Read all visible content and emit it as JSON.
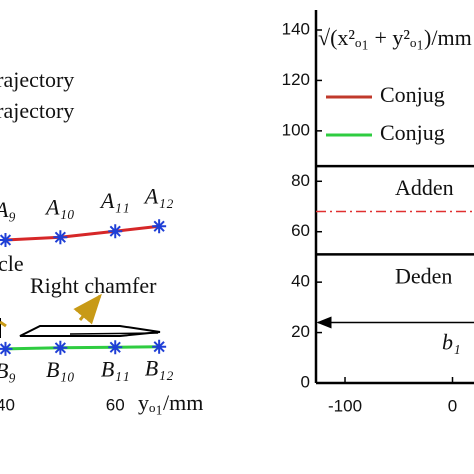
{
  "chart_data": [
    {
      "type": "line",
      "legend_texts": [
        "trajectory",
        "trajectory"
      ],
      "annotations": [
        "cle",
        "Right chamfer"
      ],
      "x_label": "yₒ₁/mm",
      "x": [
        40,
        50,
        60,
        68
      ],
      "xlim": [
        39,
        80
      ],
      "xticks": [
        40,
        60
      ],
      "ylim": [
        0,
        70
      ],
      "series": [
        {
          "color": "#d62728",
          "marker_color": "#1f3fd6",
          "values": [
            26,
            26.5,
            27.6,
            28.5
          ],
          "point_labels": [
            "A₉",
            "A₁₀",
            "A₁₁",
            "A₁₂"
          ],
          "label_side": "above"
        },
        {
          "color": "#2ecc40",
          "marker_color": "#1f3fd6",
          "values": [
            6.2,
            6.4,
            6.5,
            6.6
          ],
          "point_labels": [
            "B₉",
            "B₁₀",
            "B₁₁",
            "B₁₂"
          ],
          "label_side": "below"
        }
      ]
    },
    {
      "type": "levels",
      "y_label": "√(x²ₒ₁ + y²ₒ₁)/mm",
      "xlim": [
        -127,
        20
      ],
      "xticks": [
        -100,
        0
      ],
      "ylim": [
        0,
        140
      ],
      "yticks": [
        0,
        20,
        40,
        60,
        80,
        100,
        120,
        140
      ],
      "legend": [
        {
          "name": "Conjug",
          "color": "#c0392b"
        },
        {
          "name": "Conjug",
          "color": "#2ecc40"
        }
      ],
      "levels": [
        {
          "value": 86,
          "color": "#000000",
          "dash": "solid",
          "label": "Adden"
        },
        {
          "value": 68,
          "color": "#e03030",
          "dash": "dashdot"
        },
        {
          "value": 51,
          "color": "#000000",
          "dash": "solid",
          "label": "Deden"
        }
      ],
      "arrow": {
        "value": 24,
        "label": "b₁"
      }
    }
  ]
}
